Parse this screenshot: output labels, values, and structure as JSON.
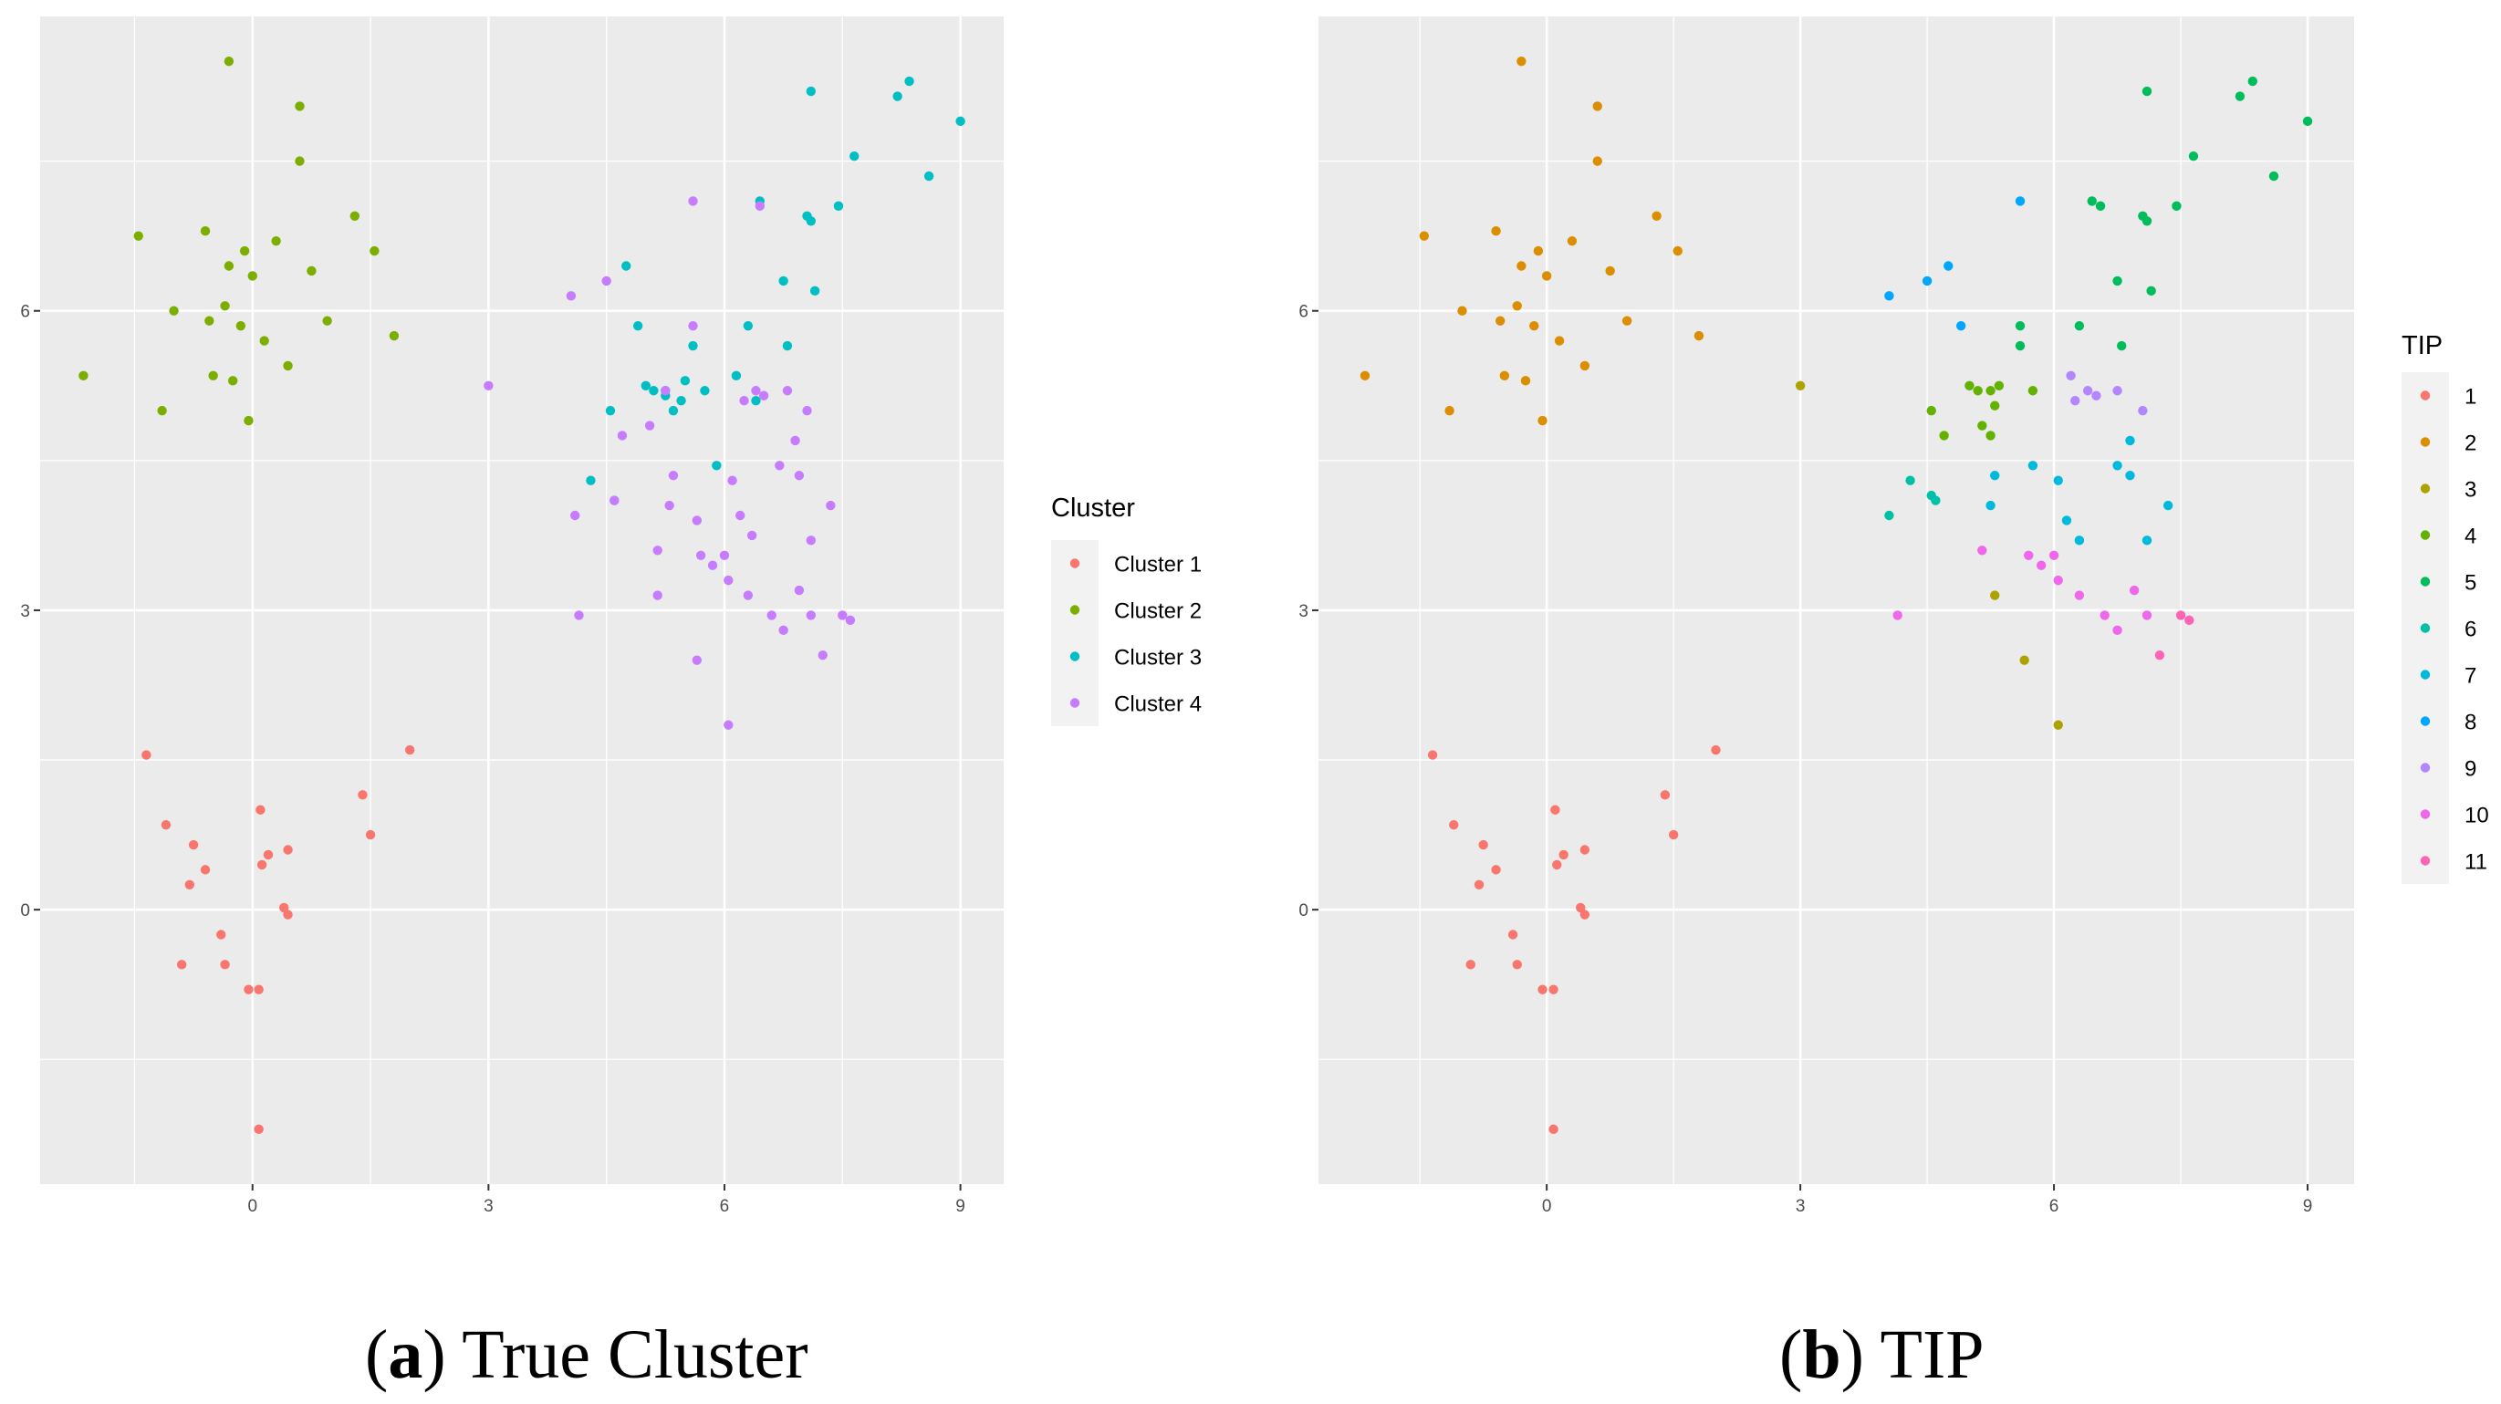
{
  "chart_data": [
    {
      "type": "scatter",
      "title": "",
      "xlabel": "",
      "ylabel": "",
      "xlim": [
        -2.7,
        9.55
      ],
      "ylim": [
        -2.75,
        8.95
      ],
      "x_ticks": [
        0,
        3,
        6,
        9
      ],
      "y_ticks": [
        0,
        3,
        6
      ],
      "grid": true,
      "legend_title": "Cluster",
      "legend_position": "right",
      "caption_tag": "a",
      "caption_text": "True Cluster",
      "series": [
        {
          "name": "Cluster 1",
          "color": "#F8766D",
          "points": [
            [
              -1.35,
              1.55
            ],
            [
              -1.1,
              0.85
            ],
            [
              -0.75,
              0.65
            ],
            [
              -0.6,
              0.4
            ],
            [
              -0.8,
              0.25
            ],
            [
              0.1,
              1.0
            ],
            [
              0.2,
              0.55
            ],
            [
              0.12,
              0.45
            ],
            [
              0.45,
              0.6
            ],
            [
              0.4,
              0.02
            ],
            [
              0.45,
              -0.05
            ],
            [
              -0.4,
              -0.25
            ],
            [
              -0.9,
              -0.55
            ],
            [
              -0.35,
              -0.55
            ],
            [
              -0.05,
              -0.8
            ],
            [
              0.08,
              -0.8
            ],
            [
              0.08,
              -2.2
            ],
            [
              1.4,
              1.15
            ],
            [
              1.5,
              0.75
            ],
            [
              2.0,
              1.6
            ]
          ]
        },
        {
          "name": "Cluster 2",
          "color": "#7CAE00",
          "points": [
            [
              -2.15,
              5.35
            ],
            [
              -1.45,
              6.75
            ],
            [
              -1.15,
              5.0
            ],
            [
              -1.0,
              6.0
            ],
            [
              -0.6,
              6.8
            ],
            [
              -0.55,
              5.9
            ],
            [
              -0.35,
              6.05
            ],
            [
              -0.3,
              6.45
            ],
            [
              -0.25,
              5.3
            ],
            [
              -0.15,
              5.85
            ],
            [
              -0.1,
              6.6
            ],
            [
              0.0,
              6.35
            ],
            [
              0.15,
              5.7
            ],
            [
              0.3,
              6.7
            ],
            [
              0.45,
              5.45
            ],
            [
              0.6,
              8.05
            ],
            [
              0.6,
              7.5
            ],
            [
              0.75,
              6.4
            ],
            [
              0.95,
              5.9
            ],
            [
              1.3,
              6.95
            ],
            [
              1.55,
              6.6
            ],
            [
              1.8,
              5.75
            ],
            [
              -0.3,
              8.5
            ],
            [
              -0.5,
              5.35
            ],
            [
              -0.05,
              4.9
            ]
          ]
        },
        {
          "name": "Cluster 3",
          "color": "#00BFC4",
          "points": [
            [
              4.3,
              4.3
            ],
            [
              4.55,
              5.0
            ],
            [
              4.6,
              4.1
            ],
            [
              4.75,
              6.45
            ],
            [
              4.9,
              5.85
            ],
            [
              5.0,
              5.25
            ],
            [
              5.1,
              5.2
            ],
            [
              5.25,
              5.2
            ],
            [
              5.35,
              5.0
            ],
            [
              5.45,
              5.1
            ],
            [
              5.5,
              5.3
            ],
            [
              5.6,
              5.65
            ],
            [
              5.75,
              5.2
            ],
            [
              5.9,
              4.45
            ],
            [
              6.15,
              5.35
            ],
            [
              6.3,
              5.85
            ],
            [
              6.4,
              5.1
            ],
            [
              6.45,
              7.1
            ],
            [
              6.75,
              6.3
            ],
            [
              6.8,
              5.65
            ],
            [
              7.05,
              6.95
            ],
            [
              7.1,
              6.9
            ],
            [
              7.15,
              6.2
            ],
            [
              7.45,
              7.05
            ],
            [
              7.65,
              7.55
            ],
            [
              8.2,
              8.15
            ],
            [
              8.35,
              8.3
            ],
            [
              8.6,
              7.35
            ],
            [
              9.0,
              7.9
            ],
            [
              7.1,
              8.2
            ],
            [
              5.25,
              5.15
            ]
          ]
        },
        {
          "name": "Cluster 4",
          "color": "#C77CFF",
          "points": [
            [
              3.0,
              5.25
            ],
            [
              4.05,
              6.15
            ],
            [
              4.1,
              3.95
            ],
            [
              4.15,
              2.95
            ],
            [
              4.5,
              6.3
            ],
            [
              4.6,
              4.1
            ],
            [
              4.7,
              4.75
            ],
            [
              5.05,
              4.85
            ],
            [
              5.15,
              3.15
            ],
            [
              5.15,
              3.6
            ],
            [
              5.25,
              5.2
            ],
            [
              5.3,
              4.05
            ],
            [
              5.35,
              4.35
            ],
            [
              5.6,
              5.85
            ],
            [
              5.6,
              7.1
            ],
            [
              5.65,
              2.5
            ],
            [
              5.7,
              3.55
            ],
            [
              5.85,
              3.45
            ],
            [
              6.0,
              3.55
            ],
            [
              6.05,
              1.85
            ],
            [
              6.05,
              3.3
            ],
            [
              6.1,
              4.3
            ],
            [
              6.2,
              3.95
            ],
            [
              6.25,
              5.1
            ],
            [
              6.3,
              3.15
            ],
            [
              6.35,
              3.75
            ],
            [
              6.45,
              7.05
            ],
            [
              6.5,
              5.15
            ],
            [
              6.6,
              2.95
            ],
            [
              6.7,
              4.45
            ],
            [
              6.75,
              2.8
            ],
            [
              6.8,
              5.2
            ],
            [
              6.95,
              3.2
            ],
            [
              6.9,
              4.7
            ],
            [
              6.95,
              4.35
            ],
            [
              7.05,
              5.0
            ],
            [
              7.1,
              3.7
            ],
            [
              7.1,
              2.95
            ],
            [
              7.25,
              2.55
            ],
            [
              7.35,
              4.05
            ],
            [
              7.5,
              2.95
            ],
            [
              7.6,
              2.9
            ],
            [
              6.4,
              5.2
            ],
            [
              5.65,
              3.9
            ]
          ]
        }
      ]
    },
    {
      "type": "scatter",
      "title": "",
      "xlabel": "",
      "ylabel": "",
      "xlim": [
        -2.7,
        9.55
      ],
      "ylim": [
        -2.75,
        8.95
      ],
      "x_ticks": [
        0,
        3,
        6,
        9
      ],
      "y_ticks": [
        0,
        3,
        6
      ],
      "grid": true,
      "legend_title": "TIP",
      "legend_position": "right",
      "caption_tag": "b",
      "caption_text": "TIP",
      "series": [
        {
          "name": "1",
          "color": "#F8766D",
          "points": [
            [
              -1.35,
              1.55
            ],
            [
              -1.1,
              0.85
            ],
            [
              -0.75,
              0.65
            ],
            [
              -0.6,
              0.4
            ],
            [
              -0.8,
              0.25
            ],
            [
              0.1,
              1.0
            ],
            [
              0.2,
              0.55
            ],
            [
              0.12,
              0.45
            ],
            [
              0.45,
              0.6
            ],
            [
              0.4,
              0.02
            ],
            [
              0.45,
              -0.05
            ],
            [
              -0.4,
              -0.25
            ],
            [
              -0.9,
              -0.55
            ],
            [
              -0.35,
              -0.55
            ],
            [
              -0.05,
              -0.8
            ],
            [
              0.08,
              -0.8
            ],
            [
              0.08,
              -2.2
            ],
            [
              1.4,
              1.15
            ],
            [
              1.5,
              0.75
            ],
            [
              2.0,
              1.6
            ]
          ]
        },
        {
          "name": "2",
          "color": "#DB8E00",
          "points": [
            [
              -2.15,
              5.35
            ],
            [
              -1.45,
              6.75
            ],
            [
              -1.15,
              5.0
            ],
            [
              -1.0,
              6.0
            ],
            [
              -0.6,
              6.8
            ],
            [
              -0.55,
              5.9
            ],
            [
              -0.35,
              6.05
            ],
            [
              -0.3,
              6.45
            ],
            [
              -0.25,
              5.3
            ],
            [
              -0.15,
              5.85
            ],
            [
              -0.1,
              6.6
            ],
            [
              0.0,
              6.35
            ],
            [
              0.15,
              5.7
            ],
            [
              0.3,
              6.7
            ],
            [
              0.45,
              5.45
            ],
            [
              0.6,
              8.05
            ],
            [
              0.6,
              7.5
            ],
            [
              0.75,
              6.4
            ],
            [
              0.95,
              5.9
            ],
            [
              1.3,
              6.95
            ],
            [
              1.55,
              6.6
            ],
            [
              1.8,
              5.75
            ],
            [
              -0.3,
              8.5
            ],
            [
              -0.5,
              5.35
            ],
            [
              -0.05,
              4.9
            ]
          ]
        },
        {
          "name": "3",
          "color": "#AEA200",
          "points": [
            [
              3.0,
              5.25
            ],
            [
              5.3,
              3.15
            ],
            [
              5.65,
              2.5
            ],
            [
              6.05,
              1.85
            ]
          ]
        },
        {
          "name": "4",
          "color": "#64B200",
          "points": [
            [
              4.55,
              5.0
            ],
            [
              4.7,
              4.75
            ],
            [
              5.0,
              5.25
            ],
            [
              5.1,
              5.2
            ],
            [
              5.25,
              5.2
            ],
            [
              5.35,
              5.25
            ],
            [
              5.3,
              5.05
            ],
            [
              5.15,
              4.85
            ],
            [
              5.25,
              4.75
            ],
            [
              5.75,
              5.2
            ]
          ]
        },
        {
          "name": "5",
          "color": "#00BD5C",
          "points": [
            [
              5.6,
              5.85
            ],
            [
              5.6,
              5.65
            ],
            [
              6.3,
              5.85
            ],
            [
              6.45,
              7.1
            ],
            [
              6.55,
              7.05
            ],
            [
              6.75,
              6.3
            ],
            [
              6.8,
              5.65
            ],
            [
              7.05,
              6.95
            ],
            [
              7.1,
              6.9
            ],
            [
              7.15,
              6.2
            ],
            [
              7.45,
              7.05
            ],
            [
              7.65,
              7.55
            ],
            [
              8.2,
              8.15
            ],
            [
              8.35,
              8.3
            ],
            [
              8.6,
              7.35
            ],
            [
              9.0,
              7.9
            ],
            [
              7.1,
              8.2
            ]
          ]
        },
        {
          "name": "6",
          "color": "#00C1A7",
          "points": [
            [
              4.05,
              3.95
            ],
            [
              4.3,
              4.3
            ],
            [
              4.55,
              4.15
            ],
            [
              4.6,
              4.1
            ]
          ]
        },
        {
          "name": "7",
          "color": "#00BADE",
          "points": [
            [
              5.3,
              4.35
            ],
            [
              5.25,
              4.05
            ],
            [
              5.75,
              4.45
            ],
            [
              6.05,
              4.3
            ],
            [
              6.15,
              3.9
            ],
            [
              6.3,
              3.7
            ],
            [
              6.75,
              4.45
            ],
            [
              6.9,
              4.35
            ],
            [
              6.9,
              4.7
            ],
            [
              7.1,
              3.7
            ],
            [
              7.35,
              4.05
            ]
          ]
        },
        {
          "name": "8",
          "color": "#00A6FF",
          "points": [
            [
              4.05,
              6.15
            ],
            [
              4.5,
              6.3
            ],
            [
              4.75,
              6.45
            ],
            [
              4.9,
              5.85
            ],
            [
              5.6,
              7.1
            ]
          ]
        },
        {
          "name": "9",
          "color": "#B385FF",
          "points": [
            [
              6.2,
              5.35
            ],
            [
              6.25,
              5.1
            ],
            [
              6.4,
              5.2
            ],
            [
              6.5,
              5.15
            ],
            [
              6.75,
              5.2
            ],
            [
              7.05,
              5.0
            ]
          ]
        },
        {
          "name": "10",
          "color": "#EF67EB",
          "points": [
            [
              4.15,
              2.95
            ],
            [
              5.15,
              3.6
            ],
            [
              5.7,
              3.55
            ],
            [
              5.85,
              3.45
            ],
            [
              6.0,
              3.55
            ],
            [
              6.05,
              3.3
            ],
            [
              6.3,
              3.15
            ],
            [
              6.6,
              2.95
            ],
            [
              6.75,
              2.8
            ],
            [
              6.95,
              3.2
            ],
            [
              7.1,
              2.95
            ]
          ]
        },
        {
          "name": "11",
          "color": "#FF63B6",
          "points": [
            [
              7.25,
              2.55
            ],
            [
              7.5,
              2.95
            ],
            [
              7.6,
              2.9
            ]
          ]
        }
      ]
    }
  ]
}
